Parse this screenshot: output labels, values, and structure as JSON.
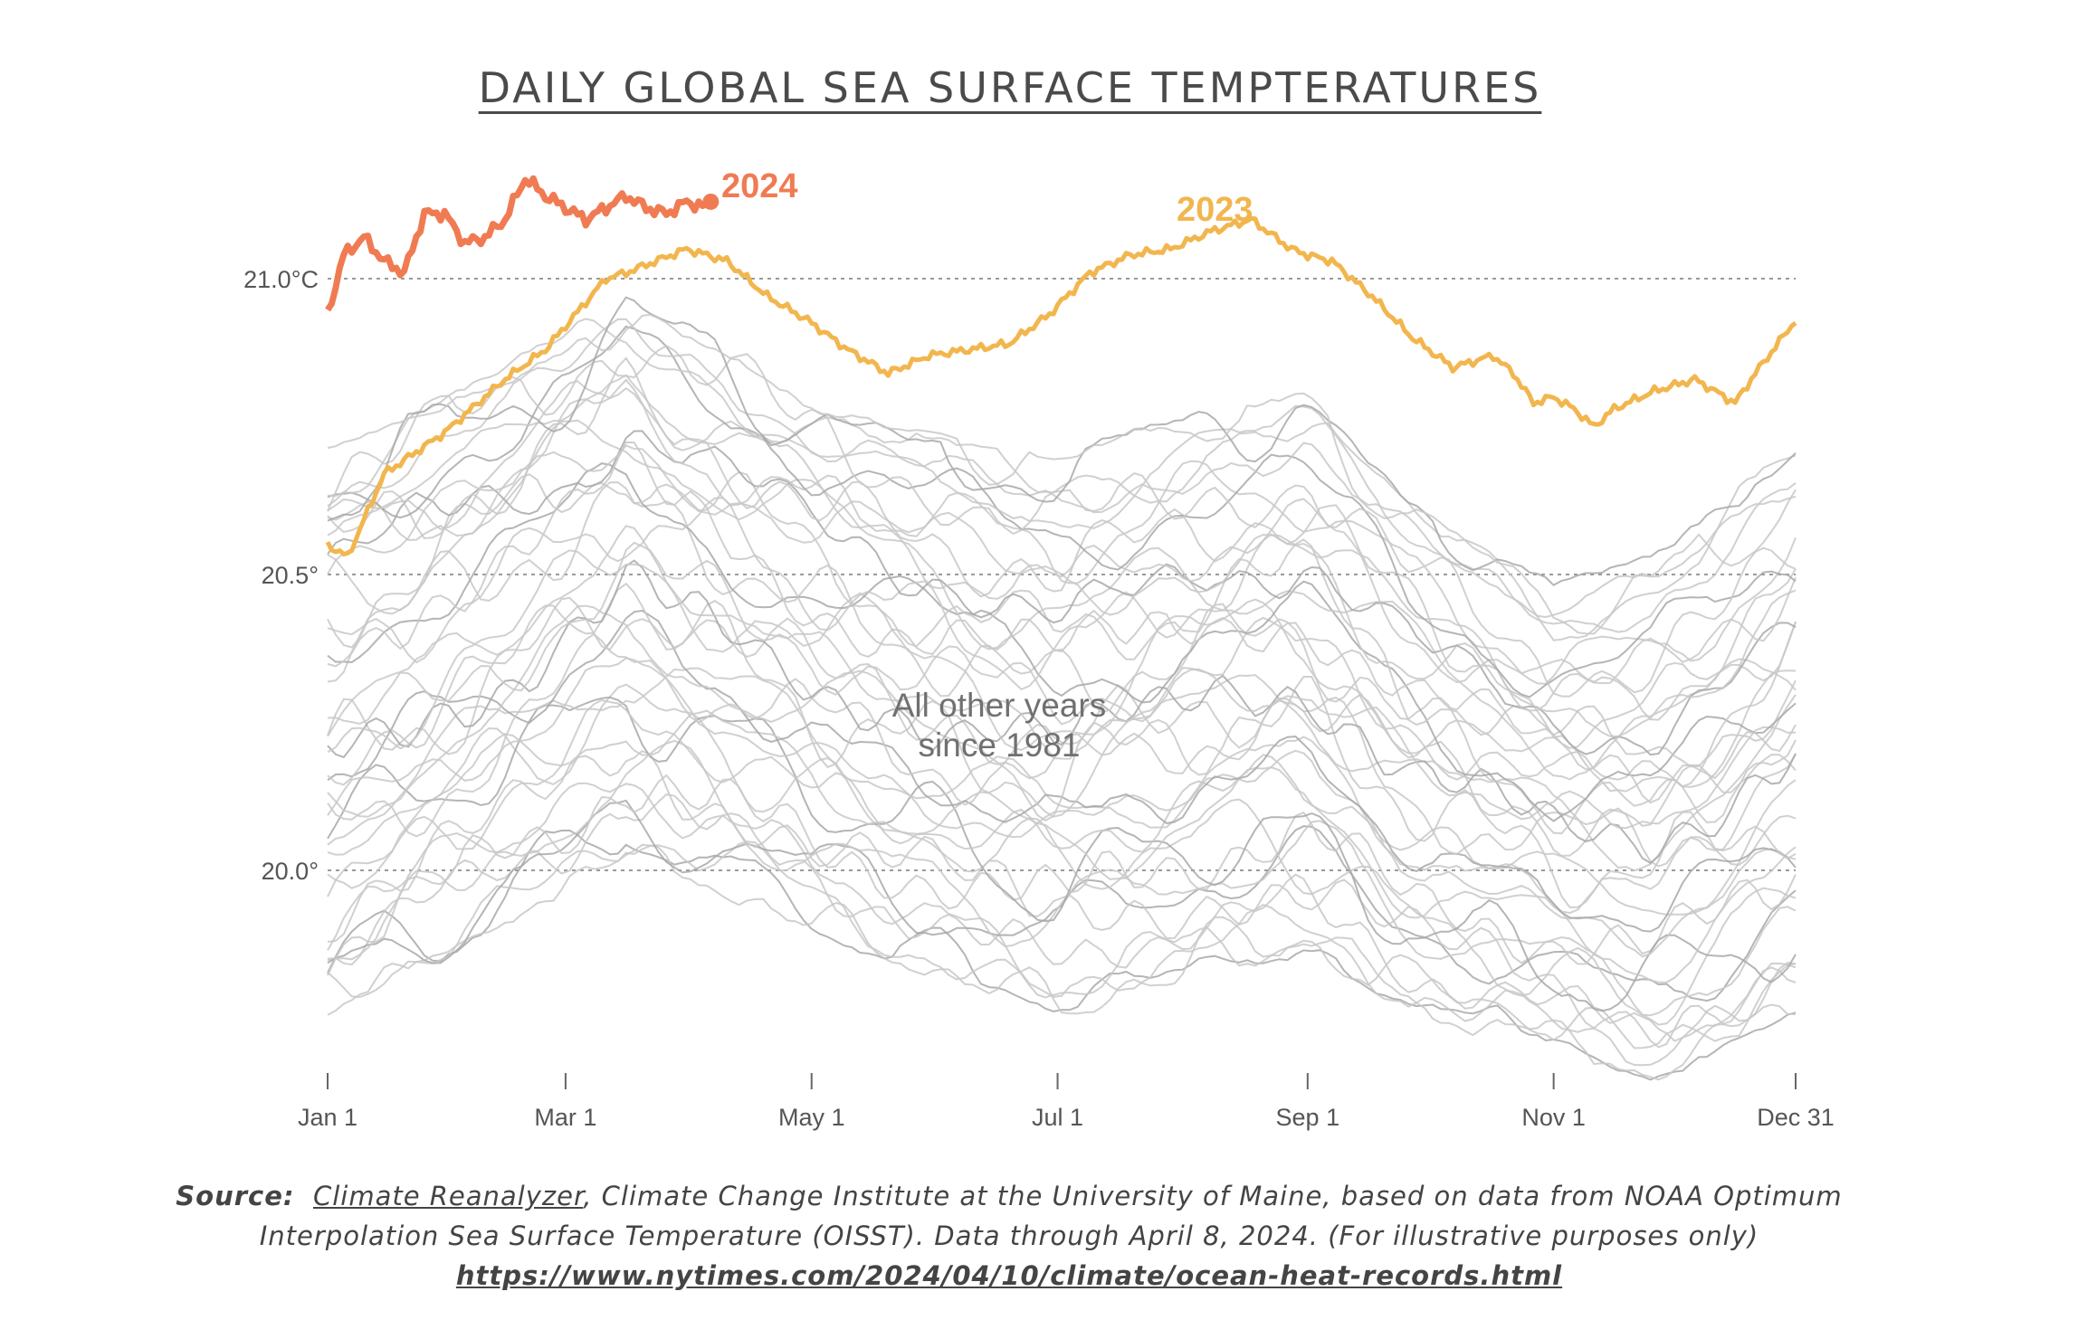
{
  "title": "DAILY GLOBAL SEA SURFACE TEMPTERATURES",
  "chart_data": {
    "type": "line",
    "title": "DAILY GLOBAL SEA SURFACE TEMPTERATURES",
    "xlabel": "",
    "ylabel": "",
    "x_ticks": [
      "Jan 1",
      "Mar 1",
      "May 1",
      "Jul 1",
      "Sep 1",
      "Nov 1",
      "Dec 31"
    ],
    "x_tick_days": [
      1,
      60,
      121,
      182,
      244,
      305,
      365
    ],
    "xlim": [
      1,
      365
    ],
    "y_ticks": [
      {
        "value": 21.0,
        "label": "21.0°C"
      },
      {
        "value": 20.5,
        "label": "20.5°"
      },
      {
        "value": 20.0,
        "label": "20.0°"
      }
    ],
    "ylim": [
      19.65,
      21.2
    ],
    "gridlines": "horizontal dotted at y ticks",
    "annotation_other": [
      "All other years",
      "since 1981"
    ],
    "series": [
      {
        "name": "2024",
        "label": "2024",
        "color": "#f07b52",
        "days": [
          1,
          5,
          10,
          15,
          20,
          25,
          30,
          35,
          40,
          45,
          50,
          55,
          60,
          65,
          70,
          75,
          80,
          85,
          90,
          95,
          96
        ],
        "values": [
          20.94,
          21.04,
          21.07,
          21.03,
          21.01,
          21.11,
          21.11,
          21.06,
          21.07,
          21.1,
          21.17,
          21.14,
          21.12,
          21.1,
          21.12,
          21.14,
          21.12,
          21.11,
          21.13,
          21.12,
          21.13
        ]
      },
      {
        "name": "2023",
        "label": "2023",
        "color": "#f2b64e",
        "days": [
          1,
          6,
          15,
          30,
          45,
          55,
          70,
          75,
          90,
          100,
          110,
          120,
          130,
          140,
          150,
          160,
          170,
          180,
          190,
          200,
          210,
          220,
          230,
          240,
          244,
          250,
          260,
          270,
          280,
          290,
          295,
          300,
          305,
          310,
          315,
          320,
          330,
          340,
          350,
          355,
          365
        ],
        "values": [
          20.55,
          20.53,
          20.67,
          20.74,
          20.83,
          20.88,
          21.0,
          21.01,
          21.05,
          21.03,
          20.97,
          20.93,
          20.88,
          20.84,
          20.87,
          20.88,
          20.89,
          20.94,
          21.01,
          21.04,
          21.05,
          21.08,
          21.1,
          21.05,
          21.04,
          21.03,
          20.97,
          20.9,
          20.85,
          20.87,
          20.84,
          20.79,
          20.8,
          20.78,
          20.75,
          20.78,
          20.81,
          20.83,
          20.79,
          20.84,
          20.93
        ]
      }
    ],
    "other_years": {
      "label": "All other years since 1981",
      "color": "#c8c8c8",
      "envelope_days": [
        1,
        60,
        75,
        121,
        182,
        220,
        244,
        270,
        305,
        330,
        365
      ],
      "envelope_high": [
        20.72,
        20.9,
        20.98,
        20.8,
        20.68,
        20.78,
        20.8,
        20.62,
        20.48,
        20.52,
        20.7
      ],
      "envelope_low": [
        19.75,
        19.95,
        20.02,
        19.9,
        19.76,
        19.85,
        19.85,
        19.76,
        19.7,
        19.65,
        19.75
      ]
    }
  },
  "source": {
    "label": "Source:",
    "link_text": "Climate Reanalyzer",
    "line1_rest": ", Climate Change Institute at the University of Maine, based on data from NOAA Optimum",
    "line2": "Interpolation Sea Surface Temperature (OISST). Data through April 8, 2024. (For illustrative purposes only)",
    "url": "https://www.nytimes.com/2024/04/10/climate/ocean-heat-records.html"
  }
}
